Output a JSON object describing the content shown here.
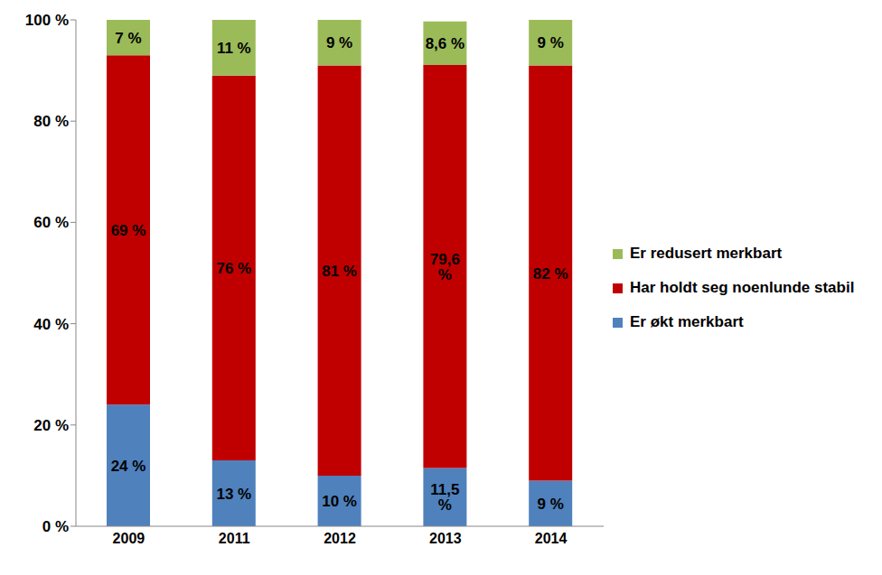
{
  "chart_data": {
    "type": "bar",
    "stacked": true,
    "data_labels": true,
    "legend": "right",
    "grid": false,
    "categories": [
      "2009",
      "2011",
      "2012",
      "2013",
      "2014"
    ],
    "series": [
      {
        "name": "Er økt merkbart",
        "color": "#4f81bd",
        "values": [
          24,
          13,
          10,
          11.5,
          9
        ],
        "value_labels": [
          "24 %",
          "13 %",
          "10 %",
          "11,5 %",
          "9 %"
        ]
      },
      {
        "name": "Har holdt seg noenlunde stabil",
        "color": "#c00000",
        "values": [
          69,
          76,
          81,
          79.6,
          82
        ],
        "value_labels": [
          "69 %",
          "76 %",
          "81 %",
          "79,6 %",
          "82 %"
        ]
      },
      {
        "name": "Er redusert merkbart",
        "color": "#9bbb59",
        "values": [
          7,
          11,
          9,
          8.6,
          9
        ],
        "value_labels": [
          "7 %",
          "11 %",
          "9 %",
          "8,6 %",
          "9 %"
        ]
      }
    ],
    "ylim": [
      0,
      100
    ],
    "yticks": [
      {
        "value": 0,
        "label": "0 %"
      },
      {
        "value": 20,
        "label": "20 %"
      },
      {
        "value": 40,
        "label": "40 %"
      },
      {
        "value": 60,
        "label": "60 %"
      },
      {
        "value": 80,
        "label": "80 %"
      },
      {
        "value": 100,
        "label": "100 %"
      }
    ]
  }
}
